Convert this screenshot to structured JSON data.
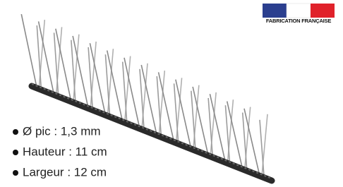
{
  "badge": {
    "label": "FABRICATION FRANÇAISE"
  },
  "specs": [
    "Ø pic : 1,3 mm",
    "Hauteur : 11 cm",
    "Largeur : 12 cm"
  ]
}
